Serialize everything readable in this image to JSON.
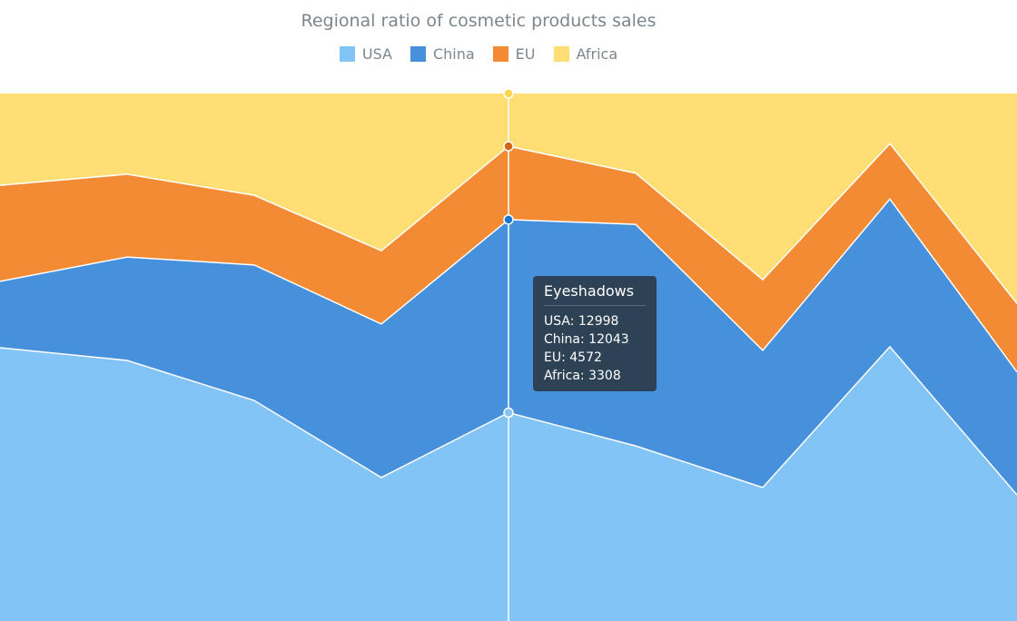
{
  "chart_data": {
    "type": "area",
    "stacking": "percent",
    "title": "Regional ratio of cosmetic products sales",
    "legend_position": "top",
    "x": [
      1,
      2,
      3,
      4,
      5,
      6,
      7,
      8,
      9
    ],
    "ylim": [
      0,
      100
    ],
    "series": [
      {
        "name": "USA",
        "color": "#83c4f7",
        "values": [
          51.8,
          49.4,
          41.8,
          27.2,
          39.5,
          33.2,
          25.3,
          52.0,
          23.9
        ]
      },
      {
        "name": "China",
        "color": "#4790db",
        "values": [
          12.6,
          19.6,
          25.7,
          29.1,
          36.6,
          42.0,
          26.0,
          28.0,
          23.3
        ]
      },
      {
        "name": "EU",
        "color": "#f38b35",
        "values": [
          18.2,
          15.7,
          13.2,
          13.9,
          13.9,
          9.7,
          13.4,
          10.5,
          13.0
        ]
      },
      {
        "name": "Africa",
        "color": "#ffdf73",
        "values": [
          17.4,
          15.3,
          19.3,
          29.8,
          10.0,
          15.1,
          35.3,
          9.5,
          39.8
        ]
      }
    ],
    "hover_index": 4
  },
  "tooltip": {
    "title": "Eyeshadows",
    "rows": [
      "USA: 12998",
      "China: 12043",
      "EU: 4572",
      "Africa: 3308"
    ]
  }
}
